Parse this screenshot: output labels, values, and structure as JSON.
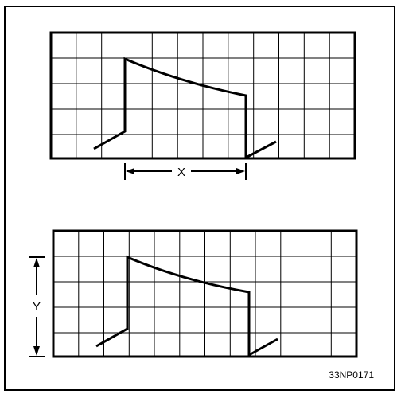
{
  "diagram": {
    "top_dimension_label": "X",
    "side_dimension_label": "Y",
    "figure_code": "33NP0171"
  }
}
